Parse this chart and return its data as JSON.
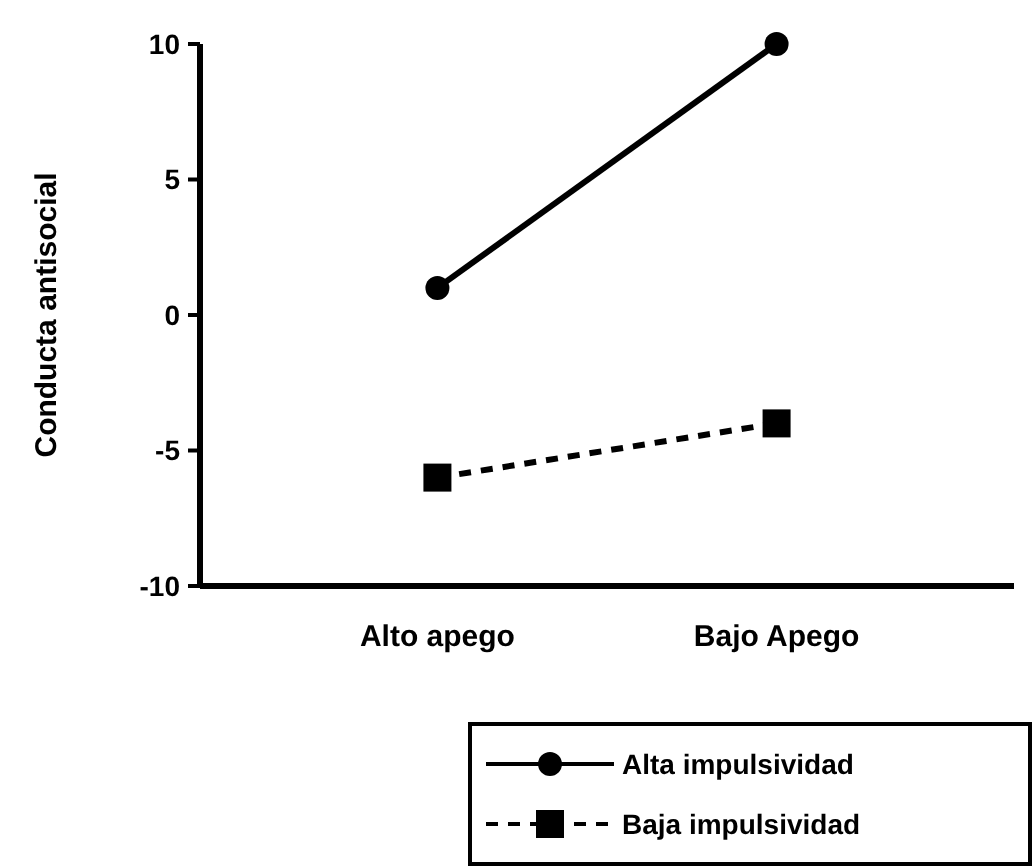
{
  "chart_data": {
    "type": "line",
    "ylabel": "Conducta antisocial",
    "categories": [
      "Alto apego",
      "Bajo Apego"
    ],
    "series": [
      {
        "name": "Alta impulsividad",
        "color": "#000000",
        "values": [
          1,
          10
        ],
        "marker": "circle",
        "line_style": "solid"
      },
      {
        "name": "Baja impulsividad",
        "color": "#000000",
        "values": [
          -6,
          -4
        ],
        "marker": "square",
        "line_style": "dashed"
      }
    ],
    "ylim": [
      -10,
      10
    ],
    "yticks": [
      -10,
      -5,
      0,
      5,
      10
    ],
    "grid": false,
    "legend": "bottom right"
  }
}
